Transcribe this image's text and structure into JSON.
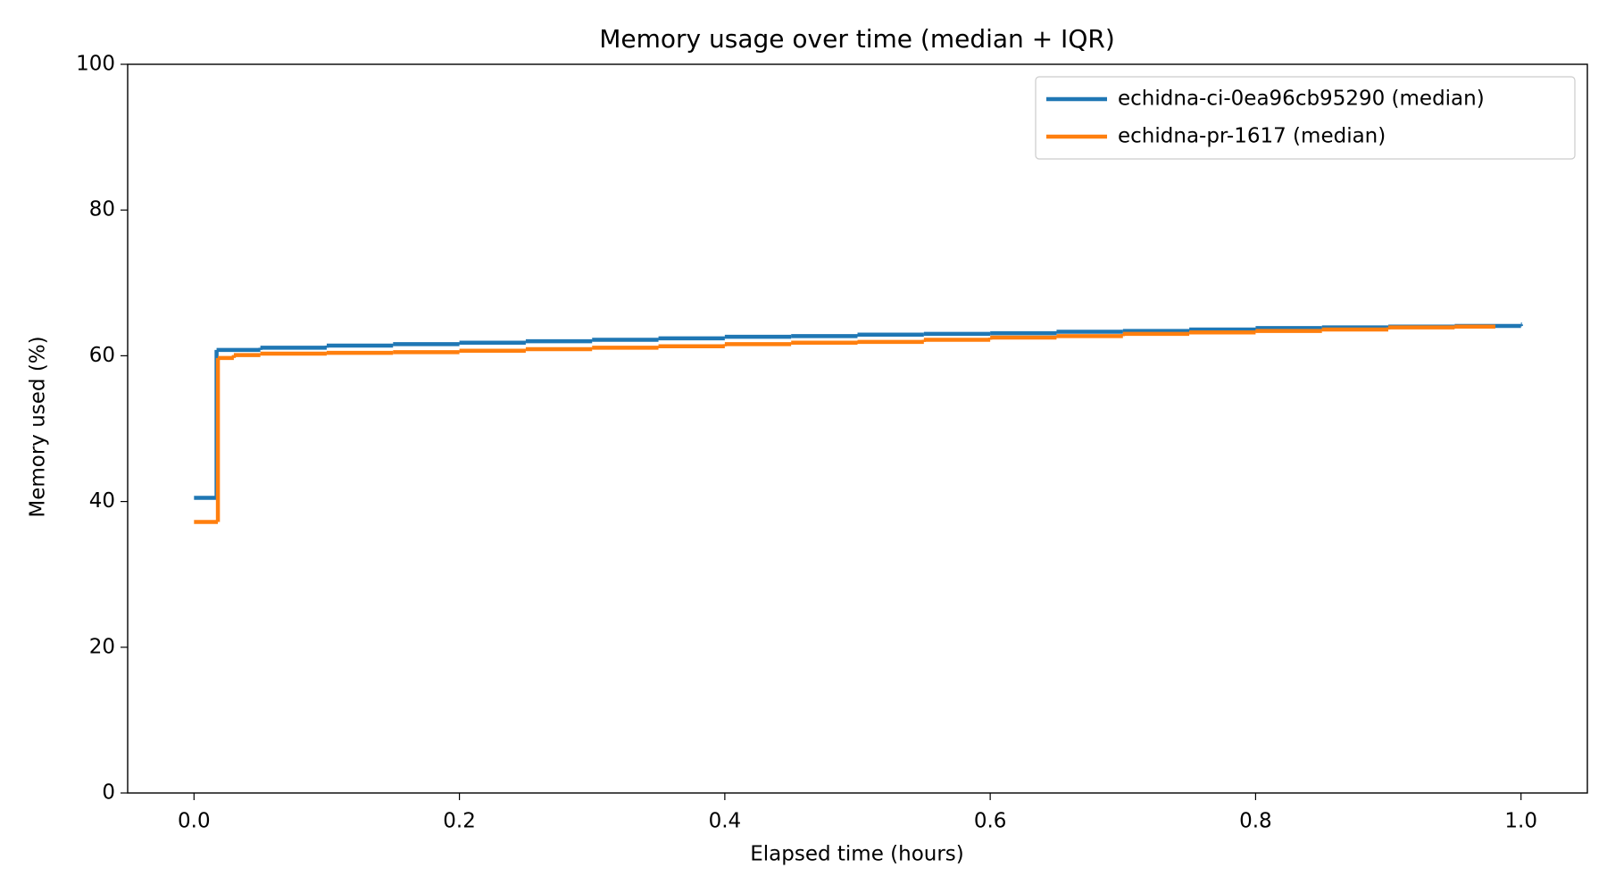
{
  "chart_data": {
    "type": "line",
    "drawstyle": "steps-post",
    "title": "Memory usage over time (median + IQR)",
    "x_label": "Elapsed time (hours)",
    "y_label": "Memory used (%)",
    "xlim": [
      -0.05,
      1.05
    ],
    "ylim": [
      0,
      100
    ],
    "xticks": [
      {
        "value": 0,
        "label": "0.0"
      },
      0.2,
      0.4,
      0.6,
      0.8,
      {
        "value": 1,
        "label": "1.0"
      }
    ],
    "yticks": [
      0,
      20,
      40,
      60,
      80,
      100
    ],
    "legend": "upper right",
    "grid": false,
    "series": [
      {
        "name": "echidna-ci-0ea96cb95290 (median)",
        "color": "#1f77b4",
        "x": [
          0,
          0.017,
          0.05,
          0.1,
          0.15,
          0.2,
          0.25,
          0.3,
          0.35,
          0.4,
          0.45,
          0.5,
          0.55,
          0.6,
          0.65,
          0.7,
          0.75,
          0.8,
          0.85,
          0.9,
          0.95,
          1.0
        ],
        "values": [
          40.5,
          60.8,
          61.1,
          61.4,
          61.6,
          61.8,
          62.0,
          62.2,
          62.4,
          62.6,
          62.7,
          62.9,
          63.0,
          63.1,
          63.3,
          63.4,
          63.6,
          63.8,
          63.9,
          64.0,
          64.1,
          64.3
        ]
      },
      {
        "name": "echidna-pr-1617 (median)",
        "color": "#ff7f0e",
        "x": [
          0,
          0.018,
          0.03,
          0.05,
          0.1,
          0.15,
          0.2,
          0.25,
          0.3,
          0.35,
          0.4,
          0.45,
          0.5,
          0.55,
          0.6,
          0.65,
          0.7,
          0.75,
          0.8,
          0.85,
          0.9,
          0.95,
          0.98
        ],
        "values": [
          37.2,
          59.7,
          60.1,
          60.3,
          60.4,
          60.5,
          60.7,
          60.9,
          61.1,
          61.3,
          61.6,
          61.8,
          61.9,
          62.2,
          62.5,
          62.7,
          63.0,
          63.2,
          63.4,
          63.6,
          63.9,
          64.0,
          64.0
        ]
      }
    ]
  }
}
